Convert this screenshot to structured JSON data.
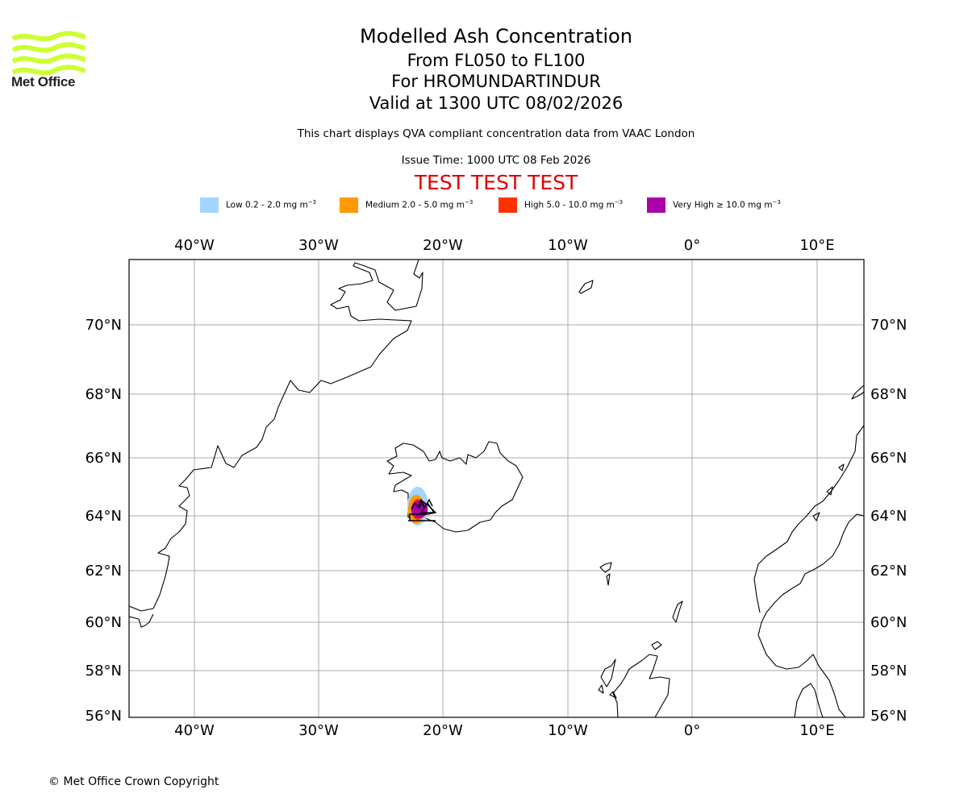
{
  "brand": {
    "name": "Met Office",
    "logo_color": "#ccff33"
  },
  "header": {
    "title": "Modelled Ash Concentration",
    "level_range": "From FL050 to FL100",
    "volcano": "For HROMUNDARTINDUR",
    "valid": "Valid at 1300 UTC 08/02/2026",
    "description": "This chart displays QVA compliant concentration data from VAAC London",
    "issue_time": "Issue Time: 1000 UTC 08 Feb 2026",
    "test_banner": "TEST TEST TEST",
    "test_color": "#e00000"
  },
  "legend": [
    {
      "label": "Low 0.2 - 2.0 mg m",
      "exponent": "−3",
      "color": "#a3d4ff"
    },
    {
      "label": "Medium 2.0 - 5.0 mg m",
      "exponent": "−3",
      "color": "#ff9900"
    },
    {
      "label": "High 5.0 - 10.0 mg m",
      "exponent": "−3",
      "color": "#ff3300"
    },
    {
      "label": "Very High  ≥  10.0 mg m",
      "exponent": "−3",
      "color": "#aa00aa"
    }
  ],
  "map": {
    "lon_ticks": [
      "40°W",
      "30°W",
      "20°W",
      "10°W",
      "0°",
      "10°E"
    ],
    "lat_ticks": [
      "70°N",
      "68°N",
      "66°N",
      "64°N",
      "62°N",
      "60°N",
      "58°N",
      "56°N"
    ],
    "gridline_color": "#aaaaaa",
    "ash_region": "Southwest Iceland (Reykjanes peninsula)",
    "volcano_marker": "volcano-symbol"
  },
  "footer": {
    "copyright": "© Met Office Crown Copyright"
  }
}
